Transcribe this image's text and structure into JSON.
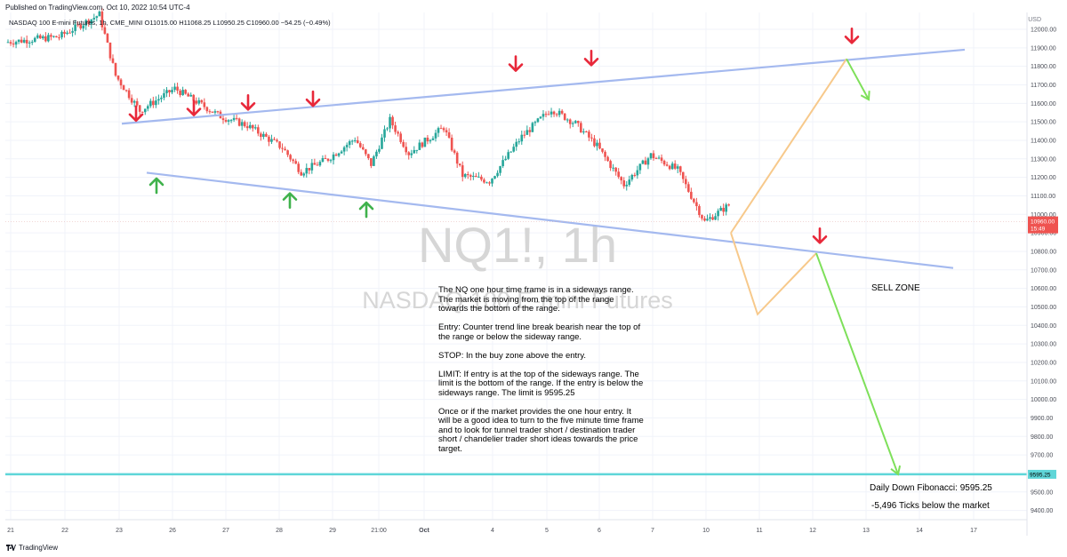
{
  "header": {
    "published": "Published on TradingView.com, Oct 10, 2022 10:54 UTC-4",
    "symbol_line": "NASDAQ 100 E-mini Futures, 1h, CME_MINI  O11015.00  H11068.25  L10950.25  C10960.00  −54.25 (−0.49%)",
    "currency": "USD"
  },
  "watermark": {
    "symbol": "NQ1!, 1h",
    "name": "NASDAQ 100 E-mini Futures"
  },
  "footer": {
    "brand": "TradingView"
  },
  "colors": {
    "up": "#26a69a",
    "down": "#ef5350",
    "trendline": "#a4b9ef",
    "target": "#5fd6d8",
    "projection_orange": "#f7c98b",
    "projection_green": "#7ee05a",
    "arrow_red": "#e8283a",
    "arrow_green": "#3fb24c"
  },
  "chart_data": {
    "type": "candlestick",
    "symbol": "NQ1!",
    "timeframe": "1h",
    "ylim": [
      9300,
      12150
    ],
    "y_ticks": [
      "12000.00",
      "11900.00",
      "11800.00",
      "11700.00",
      "11600.00",
      "11500.00",
      "11400.00",
      "11300.00",
      "11200.00",
      "11100.00",
      "11000.00",
      "10900.00",
      "10800.00",
      "10700.00",
      "10600.00",
      "10500.00",
      "10400.00",
      "10300.00",
      "10200.00",
      "10100.00",
      "10000.00",
      "9900.00",
      "9800.00",
      "9700.00",
      "9600.00",
      "9500.00",
      "9400.00"
    ],
    "x_ticks": [
      "21",
      "22",
      "23",
      "26",
      "27",
      "28",
      "29",
      "21:00",
      "Oct",
      "4",
      "5",
      "6",
      "7",
      "10",
      "11",
      "12",
      "13",
      "14",
      "17"
    ],
    "price_marker": {
      "label": "10960.00",
      "countdown": "15:49",
      "value": 10960
    },
    "target": {
      "label": "9595.25",
      "value": 9595.25
    },
    "anchor_prices": [
      [
        0,
        11930
      ],
      [
        2,
        11960
      ],
      [
        3.5,
        12080
      ],
      [
        4.1,
        11750
      ],
      [
        5,
        11560
      ],
      [
        6.3,
        11680
      ],
      [
        8,
        11530
      ],
      [
        9,
        11480
      ],
      [
        10.3,
        11360
      ],
      [
        11,
        11230
      ],
      [
        12,
        11300
      ],
      [
        13,
        11410
      ],
      [
        13.6,
        11270
      ],
      [
        14.3,
        11510
      ],
      [
        15,
        11330
      ],
      [
        16.3,
        11470
      ],
      [
        17,
        11210
      ],
      [
        18,
        11180
      ],
      [
        19.2,
        11420
      ],
      [
        20.3,
        11570
      ],
      [
        21.2,
        11490
      ],
      [
        22,
        11370
      ],
      [
        23,
        11160
      ],
      [
        24,
        11320
      ],
      [
        25,
        11240
      ],
      [
        26,
        10960
      ],
      [
        27,
        11060
      ],
      [
        28,
        11370
      ],
      [
        29,
        11550
      ],
      [
        29.5,
        11680
      ],
      [
        30.3,
        11570
      ],
      [
        31,
        11530
      ],
      [
        31.8,
        11580
      ],
      [
        32.3,
        11420
      ],
      [
        33,
        11650
      ],
      [
        34,
        11700
      ],
      [
        35,
        11610
      ],
      [
        35.8,
        11560
      ],
      [
        36.5,
        11530
      ],
      [
        37.2,
        11100
      ],
      [
        38.2,
        11060
      ],
      [
        39.4,
        11050
      ],
      [
        40,
        11060
      ],
      [
        40.4,
        10960
      ]
    ],
    "trendlines": [
      {
        "name": "upper",
        "start": [
          137,
          11490
        ],
        "end": [
          1085,
          11890
        ]
      },
      {
        "name": "lower",
        "start": [
          165,
          11225
        ],
        "end": [
          1072,
          10710
        ]
      }
    ],
    "projections": [
      {
        "color": "orange",
        "points": [
          [
            822,
            10900
          ],
          [
            852,
            10460
          ],
          [
            918,
            10790
          ]
        ]
      },
      {
        "color": "orange",
        "points": [
          [
            822,
            10900
          ],
          [
            952,
            11840
          ]
        ]
      },
      {
        "color": "green",
        "points": [
          [
            952,
            11840
          ],
          [
            977,
            11620
          ]
        ]
      },
      {
        "color": "green",
        "points": [
          [
            918,
            10790
          ],
          [
            1010,
            9595.25
          ]
        ]
      }
    ],
    "down_arrows": [
      [
        153,
        11540
      ],
      [
        218,
        11570
      ],
      [
        279,
        11600
      ],
      [
        352,
        11620
      ],
      [
        580,
        11810
      ],
      [
        665,
        11840
      ],
      [
        958,
        11960
      ],
      [
        922,
        10880
      ]
    ],
    "up_arrows": [
      [
        176,
        11160
      ],
      [
        326,
        11080
      ],
      [
        412,
        11030
      ]
    ]
  },
  "annotations": {
    "note_paragraphs": [
      "The NQ one hour time frame is in a sideways range. The market is moving from the top of the range towards the bottom of the range.",
      "Entry: Counter trend line break bearish near the top of the range or below the sideway range.",
      "STOP: In the buy zone above the entry.",
      "LIMIT: If entry is at the top of the sideways range. The limit is the bottom of the range. If the entry is below the sideways range. The limit is 9595.25",
      "Once or if the market provides the one hour entry. It will be a good idea to turn to the five minute time frame and to look for tunnel trader short / destination trader short / chandelier trader short ideas towards the price target."
    ],
    "sell_zone": "SELL ZONE",
    "fibonacci": "Daily Down Fibonacci: 9595.25",
    "ticks": "-5,496 Ticks below the market"
  }
}
